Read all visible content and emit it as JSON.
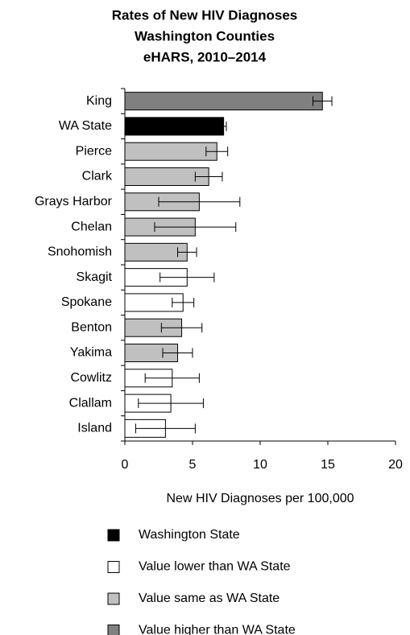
{
  "chart_data": {
    "type": "bar",
    "orientation": "horizontal",
    "title": [
      "Rates of New HIV Diagnoses",
      "Washington Counties",
      "eHARS, 2010–2014"
    ],
    "x_label": "New HIV Diagnoses per 100,000",
    "categories": [
      "King",
      "WA State",
      "Pierce",
      "Clark",
      "Grays Harbor",
      "Chelan",
      "Snohomish",
      "Skagit",
      "Spokane",
      "Benton",
      "Yakima",
      "Cowlitz",
      "Clallam",
      "Island"
    ],
    "values": [
      14.6,
      7.3,
      6.8,
      6.2,
      5.5,
      5.2,
      4.6,
      4.6,
      4.3,
      4.2,
      3.9,
      3.5,
      3.4,
      3.0
    ],
    "errors": [
      0.7,
      0.2,
      0.8,
      1.0,
      3.0,
      3.0,
      0.7,
      2.0,
      0.8,
      1.5,
      1.1,
      2.0,
      2.4,
      2.2
    ],
    "colors": [
      "#808080",
      "#000000",
      "#c0c0c0",
      "#c0c0c0",
      "#c0c0c0",
      "#c0c0c0",
      "#c0c0c0",
      "#ffffff",
      "#ffffff",
      "#c0c0c0",
      "#c0c0c0",
      "#ffffff",
      "#ffffff",
      "#ffffff"
    ],
    "xlim": [
      0,
      20
    ],
    "xticks": [
      0,
      5,
      10,
      15,
      20
    ],
    "legend": [
      {
        "label": "Washington State",
        "color": "#000000"
      },
      {
        "label": "Value lower than WA State",
        "color": "#ffffff"
      },
      {
        "label": "Value same as WA State",
        "color": "#c0c0c0"
      },
      {
        "label": "Value higher than WA State",
        "color": "#808080"
      }
    ]
  }
}
